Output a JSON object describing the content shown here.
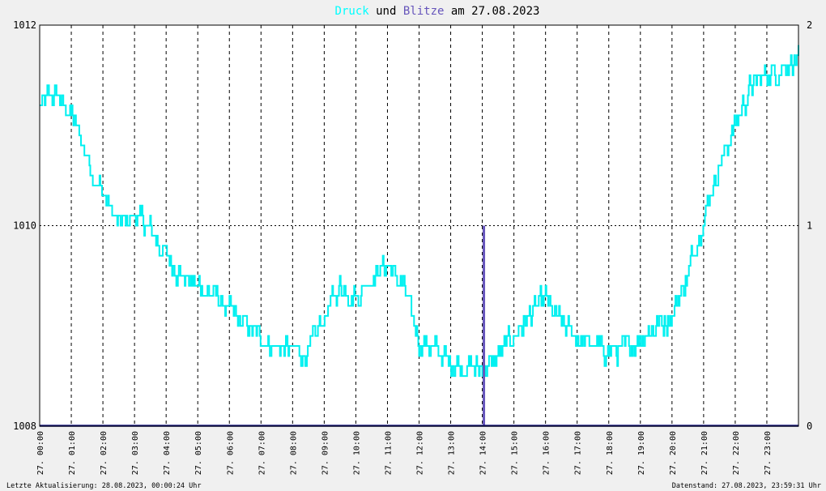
{
  "chart_data": {
    "type": "line",
    "title_parts": [
      {
        "text": "Druck",
        "color": "#00ffff"
      },
      {
        "text": " und ",
        "color": "#000000"
      },
      {
        "text": "Blitze",
        "color": "#6655bb"
      },
      {
        "text": " am 27.08.2023",
        "color": "#000000"
      }
    ],
    "colors": {
      "pressure": "#00f0f0",
      "lightning": "#6655bb",
      "baseline": "#1a1a80"
    },
    "y_left": {
      "ylim": [
        1008,
        1012
      ],
      "ticks": [
        "1008",
        "1010",
        "1012"
      ]
    },
    "y_right": {
      "ylim": [
        0,
        2
      ],
      "ticks": [
        "0",
        "1",
        "2"
      ]
    },
    "x_ticks": [
      "27. 00:00",
      "27. 01:00",
      "27. 02:00",
      "27. 03:00",
      "27. 04:00",
      "27. 05:00",
      "27. 06:00",
      "27. 07:00",
      "27. 08:00",
      "27. 09:00",
      "27. 10:00",
      "27. 11:00",
      "27. 12:00",
      "27. 13:00",
      "27. 14:00",
      "27. 15:00",
      "27. 16:00",
      "27. 17:00",
      "27. 18:00",
      "27. 19:00",
      "27. 20:00",
      "27. 21:00",
      "27. 22:00",
      "27. 23:00"
    ],
    "grid": true,
    "pressure_series": {
      "x_hours": [
        0,
        0.5,
        1,
        1.5,
        2,
        2.5,
        3,
        3.5,
        4,
        4.5,
        5,
        5.5,
        6,
        6.5,
        7,
        7.5,
        8,
        8.5,
        9,
        9.5,
        10,
        10.5,
        11,
        11.5,
        12,
        12.5,
        13,
        13.5,
        14,
        14.5,
        15,
        15.5,
        16,
        16.5,
        17,
        17.5,
        18,
        18.5,
        19,
        19.5,
        20,
        20.5,
        21,
        21.5,
        22,
        22.5,
        23,
        23.5,
        24
      ],
      "values": [
        1011.2,
        1011.3,
        1011.1,
        1010.7,
        1010.3,
        1010.0,
        1010.1,
        1009.95,
        1009.7,
        1009.5,
        1009.4,
        1009.3,
        1009.15,
        1009.0,
        1008.9,
        1008.8,
        1008.75,
        1008.7,
        1009.1,
        1009.4,
        1009.3,
        1009.5,
        1009.6,
        1009.4,
        1008.85,
        1008.75,
        1008.65,
        1008.6,
        1008.55,
        1008.7,
        1008.9,
        1009.1,
        1009.25,
        1009.0,
        1008.9,
        1008.8,
        1008.75,
        1008.75,
        1008.9,
        1009.0,
        1009.1,
        1009.5,
        1010.1,
        1010.6,
        1011.0,
        1011.4,
        1011.5,
        1011.6,
        1011.65
      ]
    },
    "lightning_series": {
      "events": [
        {
          "x_hour": 14.05,
          "count": 1
        }
      ]
    },
    "footer_left": "Letzte Aktualisierung: 28.08.2023, 00:00:24 Uhr",
    "footer_right": "Datenstand: 27.08.2023, 23:59:31 Uhr"
  }
}
